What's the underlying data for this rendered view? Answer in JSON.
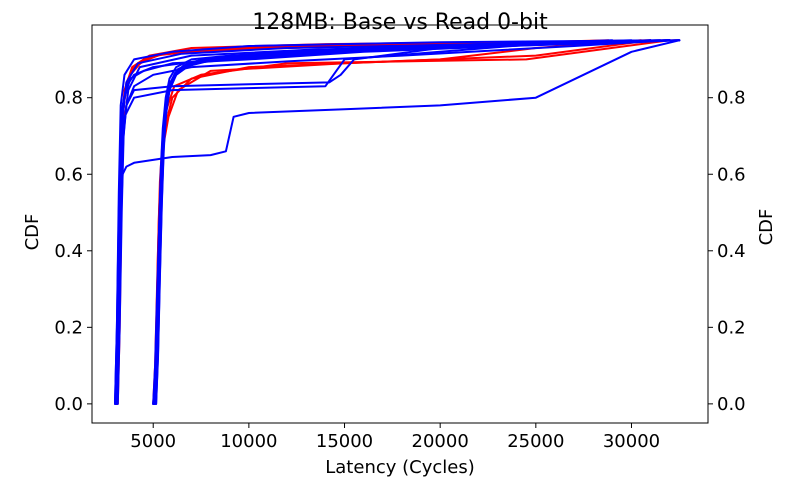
{
  "chart_data": {
    "type": "line",
    "title": "128MB: Base vs Read 0-bit",
    "xlabel": "Latency (Cycles)",
    "ylabel_left": "CDF",
    "ylabel_right": "CDF",
    "xlim": [
      1800,
      34000
    ],
    "ylim": [
      -0.05,
      0.99
    ],
    "x_ticks": [
      5000,
      10000,
      15000,
      20000,
      25000,
      30000
    ],
    "x_tick_labels": [
      "5000",
      "10000",
      "15000",
      "20000",
      "25000",
      "30000"
    ],
    "y_ticks": [
      0.0,
      0.2,
      0.4,
      0.6,
      0.8
    ],
    "y_tick_labels": [
      "0.0",
      "0.2",
      "0.4",
      "0.6",
      "0.8"
    ],
    "grid": false,
    "colors": {
      "base": "#ff0000",
      "read0": "#0000ff"
    },
    "series": [
      {
        "group": "base",
        "color": "#ff0000",
        "x": [
          3050,
          3150,
          3250,
          3350,
          3500,
          3800,
          4500,
          6000,
          12000,
          20000,
          25000,
          32000
        ],
        "y": [
          0.0,
          0.1,
          0.4,
          0.7,
          0.8,
          0.86,
          0.9,
          0.92,
          0.93,
          0.94,
          0.945,
          0.95
        ]
      },
      {
        "group": "base",
        "color": "#ff0000",
        "x": [
          3100,
          3200,
          3300,
          3400,
          3600,
          4000,
          5000,
          8000,
          15000,
          25000,
          28800
        ],
        "y": [
          0.0,
          0.15,
          0.5,
          0.75,
          0.84,
          0.88,
          0.91,
          0.925,
          0.935,
          0.945,
          0.95
        ]
      },
      {
        "group": "base",
        "color": "#ff0000",
        "x": [
          3000,
          3100,
          3200,
          3350,
          3500,
          3900,
          4800,
          7000,
          14000,
          24000,
          31000
        ],
        "y": [
          0.0,
          0.12,
          0.45,
          0.72,
          0.82,
          0.88,
          0.91,
          0.93,
          0.94,
          0.945,
          0.95
        ]
      },
      {
        "group": "base",
        "color": "#ff0000",
        "x": [
          3150,
          3250,
          3350,
          3450,
          3700,
          4200,
          5500,
          9000,
          16000,
          26000,
          32500
        ],
        "y": [
          0.0,
          0.2,
          0.55,
          0.78,
          0.85,
          0.89,
          0.915,
          0.93,
          0.94,
          0.945,
          0.95
        ]
      },
      {
        "group": "base",
        "color": "#ff0000",
        "x": [
          5000,
          5100,
          5200,
          5300,
          5450,
          5600,
          6000,
          7000,
          10000,
          20000,
          25000,
          30500
        ],
        "y": [
          0.0,
          0.1,
          0.3,
          0.5,
          0.65,
          0.72,
          0.8,
          0.85,
          0.88,
          0.9,
          0.93,
          0.95
        ]
      },
      {
        "group": "base",
        "color": "#ff0000",
        "x": [
          5100,
          5200,
          5300,
          5400,
          5550,
          5800,
          6300,
          8000,
          15000,
          25000,
          31000
        ],
        "y": [
          0.0,
          0.12,
          0.35,
          0.55,
          0.68,
          0.75,
          0.82,
          0.87,
          0.89,
          0.91,
          0.95
        ]
      },
      {
        "group": "base",
        "color": "#ff0000",
        "x": [
          5050,
          5150,
          5250,
          5350,
          5500,
          5700,
          6100,
          7500,
          12000,
          24500,
          32000
        ],
        "y": [
          0.0,
          0.15,
          0.4,
          0.58,
          0.7,
          0.77,
          0.83,
          0.86,
          0.89,
          0.9,
          0.95
        ]
      },
      {
        "group": "read0",
        "color": "#0000ff",
        "x": [
          3000,
          3100,
          3200,
          3300,
          3500,
          4000,
          6000,
          10000,
          20000,
          32000
        ],
        "y": [
          0.0,
          0.2,
          0.55,
          0.78,
          0.86,
          0.9,
          0.92,
          0.935,
          0.945,
          0.95
        ]
      },
      {
        "group": "read0",
        "color": "#0000ff",
        "x": [
          3050,
          3150,
          3250,
          3400,
          3600,
          4200,
          6500,
          12000,
          22000,
          31500
        ],
        "y": [
          0.0,
          0.18,
          0.5,
          0.75,
          0.84,
          0.89,
          0.915,
          0.93,
          0.94,
          0.95
        ]
      },
      {
        "group": "read0",
        "color": "#0000ff",
        "x": [
          3100,
          3200,
          3300,
          3400,
          3700,
          4300,
          7000,
          13000,
          23000,
          29000
        ],
        "y": [
          0.0,
          0.15,
          0.45,
          0.7,
          0.82,
          0.88,
          0.91,
          0.925,
          0.94,
          0.95
        ]
      },
      {
        "group": "read0",
        "color": "#0000ff",
        "x": [
          3000,
          3100,
          3200,
          3300,
          3400,
          3600,
          4000,
          5000,
          8000,
          15000,
          25000,
          32000
        ],
        "y": [
          0.0,
          0.2,
          0.5,
          0.7,
          0.78,
          0.83,
          0.86,
          0.88,
          0.9,
          0.92,
          0.94,
          0.95
        ]
      },
      {
        "group": "read0",
        "color": "#0000ff",
        "x": [
          3050,
          3150,
          3250,
          3350,
          3500,
          3800,
          4500,
          6000,
          10000,
          16000,
          26000,
          32500
        ],
        "y": [
          0.0,
          0.18,
          0.5,
          0.72,
          0.8,
          0.85,
          0.87,
          0.89,
          0.9,
          0.92,
          0.94,
          0.95
        ]
      },
      {
        "group": "read0",
        "color": "#0000ff",
        "x": [
          3100,
          3200,
          3300,
          3400,
          3600,
          4000,
          5000,
          7000,
          12000,
          18000,
          27000,
          32000
        ],
        "y": [
          0.0,
          0.15,
          0.45,
          0.68,
          0.78,
          0.83,
          0.86,
          0.88,
          0.895,
          0.91,
          0.935,
          0.95
        ]
      },
      {
        "group": "read0",
        "color": "#0000ff",
        "x": [
          3050,
          3150,
          3250,
          3300,
          3400,
          3600,
          4000,
          6000,
          8000,
          8800,
          9200,
          10000,
          15000,
          20000,
          25000,
          30000,
          32500
        ],
        "y": [
          0.0,
          0.15,
          0.4,
          0.48,
          0.6,
          0.62,
          0.63,
          0.645,
          0.65,
          0.66,
          0.75,
          0.76,
          0.77,
          0.78,
          0.8,
          0.92,
          0.95
        ]
      },
      {
        "group": "read0",
        "color": "#0000ff",
        "x": [
          3100,
          3200,
          3300,
          3400,
          3500,
          4000,
          6000,
          10000,
          14000,
          15000,
          20000,
          25000,
          32000
        ],
        "y": [
          0.0,
          0.15,
          0.45,
          0.65,
          0.75,
          0.8,
          0.82,
          0.825,
          0.83,
          0.9,
          0.92,
          0.94,
          0.95
        ]
      },
      {
        "group": "read0",
        "color": "#0000ff",
        "x": [
          3150,
          3250,
          3350,
          3450,
          3600,
          4000,
          6000,
          10000,
          14200,
          14800,
          15500,
          20000,
          30000,
          32500
        ],
        "y": [
          0.0,
          0.2,
          0.5,
          0.7,
          0.78,
          0.82,
          0.83,
          0.835,
          0.84,
          0.86,
          0.9,
          0.93,
          0.945,
          0.95
        ]
      },
      {
        "group": "read0",
        "color": "#0000ff",
        "x": [
          5000,
          5100,
          5200,
          5300,
          5400,
          5500,
          5600,
          5700,
          5900,
          6200,
          7000,
          10000,
          20000,
          32000
        ],
        "y": [
          0.0,
          0.05,
          0.2,
          0.4,
          0.55,
          0.65,
          0.72,
          0.78,
          0.83,
          0.86,
          0.89,
          0.91,
          0.93,
          0.95
        ]
      },
      {
        "group": "read0",
        "color": "#0000ff",
        "x": [
          5050,
          5150,
          5250,
          5350,
          5450,
          5550,
          5700,
          5900,
          6300,
          7000,
          9000,
          15000,
          25000,
          31000
        ],
        "y": [
          0.0,
          0.08,
          0.25,
          0.45,
          0.6,
          0.7,
          0.78,
          0.84,
          0.87,
          0.89,
          0.9,
          0.92,
          0.94,
          0.95
        ]
      },
      {
        "group": "read0",
        "color": "#0000ff",
        "x": [
          5100,
          5200,
          5300,
          5400,
          5500,
          5600,
          5750,
          6000,
          6500,
          7500,
          10000,
          18000,
          28000,
          32000
        ],
        "y": [
          0.0,
          0.1,
          0.3,
          0.5,
          0.64,
          0.73,
          0.8,
          0.85,
          0.88,
          0.9,
          0.91,
          0.93,
          0.945,
          0.95
        ]
      },
      {
        "group": "read0",
        "color": "#0000ff",
        "x": [
          5150,
          5250,
          5350,
          5450,
          5550,
          5650,
          5800,
          6100,
          6600,
          8000,
          12000,
          20000,
          30000
        ],
        "y": [
          0.0,
          0.12,
          0.33,
          0.52,
          0.66,
          0.75,
          0.82,
          0.86,
          0.885,
          0.9,
          0.915,
          0.935,
          0.95
        ]
      },
      {
        "group": "read0",
        "color": "#0000ff",
        "x": [
          5000,
          5100,
          5200,
          5300,
          5400,
          5500,
          5650,
          5850,
          6200,
          7000,
          9000,
          14000,
          22000,
          32500
        ],
        "y": [
          0.0,
          0.1,
          0.28,
          0.46,
          0.62,
          0.72,
          0.8,
          0.85,
          0.88,
          0.9,
          0.91,
          0.925,
          0.94,
          0.95
        ]
      },
      {
        "group": "read0",
        "color": "#0000ff",
        "x": [
          5050,
          5150,
          5250,
          5350,
          5450,
          5600,
          5800,
          6100,
          6700,
          8000,
          11000,
          17000,
          26000,
          31500
        ],
        "y": [
          0.0,
          0.09,
          0.27,
          0.47,
          0.62,
          0.74,
          0.82,
          0.86,
          0.885,
          0.9,
          0.912,
          0.93,
          0.945,
          0.95
        ]
      },
      {
        "group": "read0",
        "color": "#0000ff",
        "x": [
          5100,
          5200,
          5300,
          5400,
          5500,
          5650,
          5850,
          6150,
          6800,
          8500,
          13000,
          21000,
          29000,
          32000
        ],
        "y": [
          0.0,
          0.11,
          0.31,
          0.5,
          0.65,
          0.76,
          0.83,
          0.865,
          0.89,
          0.9,
          0.915,
          0.935,
          0.945,
          0.95
        ]
      },
      {
        "group": "read0",
        "color": "#0000ff",
        "x": [
          5150,
          5250,
          5350,
          5450,
          5550,
          5700,
          5900,
          6300,
          7200,
          9500,
          16000,
          24000,
          32000
        ],
        "y": [
          0.0,
          0.13,
          0.34,
          0.53,
          0.67,
          0.78,
          0.84,
          0.875,
          0.895,
          0.91,
          0.925,
          0.94,
          0.95
        ]
      },
      {
        "group": "read0",
        "color": "#0000ff",
        "x": [
          5000,
          5100,
          5200,
          5300,
          5400,
          5550,
          5750,
          6050,
          6600,
          7800,
          10500,
          19000,
          27500,
          31000
        ],
        "y": [
          0.0,
          0.07,
          0.24,
          0.44,
          0.6,
          0.72,
          0.81,
          0.855,
          0.88,
          0.895,
          0.91,
          0.93,
          0.945,
          0.95
        ]
      },
      {
        "group": "read0",
        "color": "#0000ff",
        "x": [
          5050,
          5150,
          5250,
          5350,
          5500,
          5650,
          5850,
          6200,
          6900,
          8200,
          12500,
          20000,
          28500,
          32500
        ],
        "y": [
          0.0,
          0.1,
          0.29,
          0.48,
          0.65,
          0.75,
          0.82,
          0.86,
          0.885,
          0.9,
          0.915,
          0.935,
          0.945,
          0.95
        ]
      }
    ]
  }
}
